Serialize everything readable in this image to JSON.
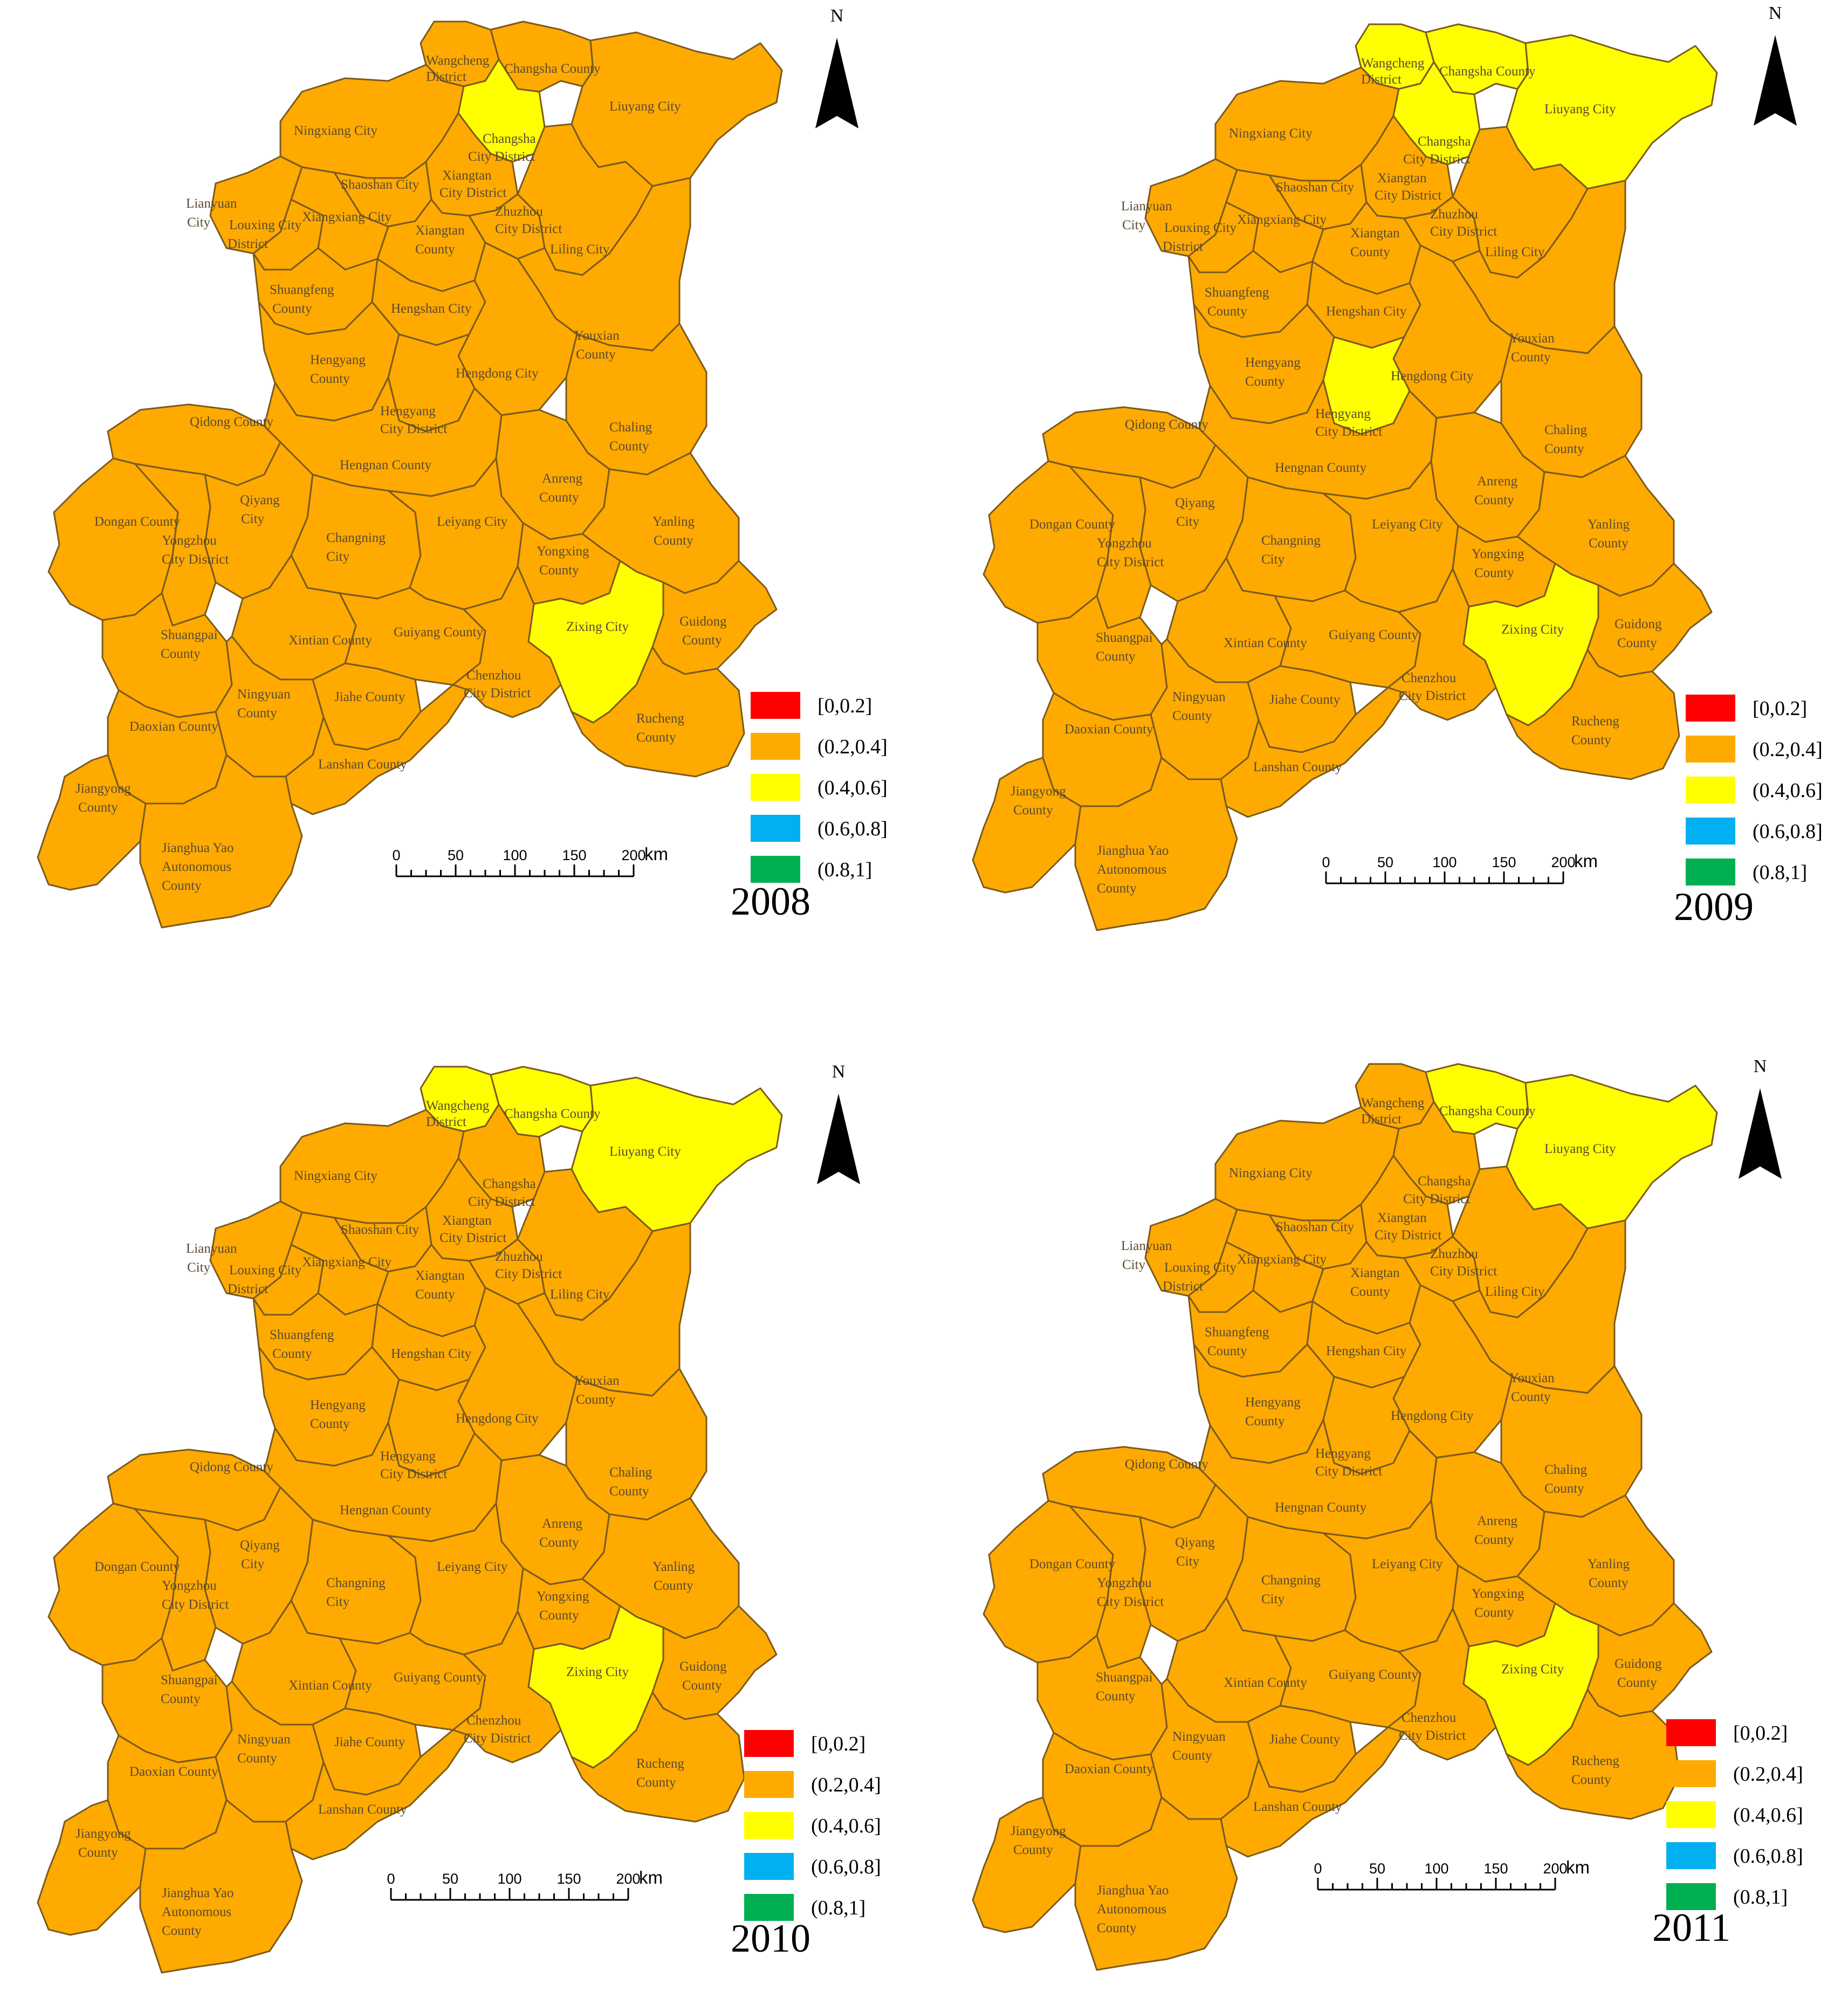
{
  "legend": {
    "classes": [
      {
        "label": "[0,0.2]",
        "color": "#ff0000"
      },
      {
        "label": "(0.2,0.4]",
        "color": "#ffaa00"
      },
      {
        "label": "(0.4,0.6]",
        "color": "#ffff00"
      },
      {
        "label": "(0.6,0.8]",
        "color": "#00b0f0"
      },
      {
        "label": "(0.8,1]",
        "color": "#00b050"
      }
    ]
  },
  "north_arrow": {
    "letter": "N"
  },
  "scale_bar": {
    "ticks": [
      "0",
      "50",
      "100",
      "150",
      "200"
    ],
    "unit": "km"
  },
  "regions": [
    {
      "name": "Wangcheng District",
      "lines": [
        "Wangcheng",
        "District"
      ]
    },
    {
      "name": "Changsha County",
      "lines": [
        "Changsha County"
      ]
    },
    {
      "name": "Liuyang City",
      "lines": [
        "Liuyang City"
      ]
    },
    {
      "name": "Ningxiang City",
      "lines": [
        "Ningxiang City"
      ]
    },
    {
      "name": "Changsha City District",
      "lines": [
        "Changsha",
        "City District"
      ]
    },
    {
      "name": "Shaoshan City",
      "lines": [
        "Shaoshan City"
      ]
    },
    {
      "name": "Xiangtan City District",
      "lines": [
        "Xiangtan",
        "City District"
      ]
    },
    {
      "name": "Lianyuan City",
      "lines": [
        "Lianyuan",
        "City"
      ]
    },
    {
      "name": "Louxing City District",
      "lines": [
        "Louxing City",
        "District"
      ]
    },
    {
      "name": "Xiangxiang City",
      "lines": [
        "Xiangxiang City"
      ]
    },
    {
      "name": "Xiangtan County",
      "lines": [
        "Xiangtan",
        "County"
      ]
    },
    {
      "name": "Zhuzhou City District",
      "lines": [
        "Zhuzhou",
        "City District"
      ]
    },
    {
      "name": "Liling City",
      "lines": [
        "Liling City"
      ]
    },
    {
      "name": "Shuangfeng County",
      "lines": [
        "Shuangfeng",
        "County"
      ]
    },
    {
      "name": "Hengshan City",
      "lines": [
        "Hengshan City"
      ]
    },
    {
      "name": "Youxian County",
      "lines": [
        "Youxian",
        "County"
      ]
    },
    {
      "name": "Hengyang County",
      "lines": [
        "Hengyang",
        "County"
      ]
    },
    {
      "name": "Hengdong City",
      "lines": [
        "Hengdong City"
      ]
    },
    {
      "name": "Qidong County",
      "lines": [
        "Qidong County"
      ]
    },
    {
      "name": "Hengyang City District",
      "lines": [
        "Hengyang",
        "City District"
      ]
    },
    {
      "name": "Chaling County",
      "lines": [
        "Chaling",
        "County"
      ]
    },
    {
      "name": "Hengnan County",
      "lines": [
        "Hengnan County"
      ]
    },
    {
      "name": "Anreng County",
      "lines": [
        "Anreng",
        "County"
      ]
    },
    {
      "name": "Qiyang City",
      "lines": [
        "Qiyang",
        "City"
      ]
    },
    {
      "name": "Dongan County",
      "lines": [
        "Dongan County"
      ]
    },
    {
      "name": "Yongzhou City District",
      "lines": [
        "Yongzhou",
        "City District"
      ]
    },
    {
      "name": "Changning City",
      "lines": [
        "Changning",
        "City"
      ]
    },
    {
      "name": "Leiyang City",
      "lines": [
        "Leiyang City"
      ]
    },
    {
      "name": "Yanling County",
      "lines": [
        "Yanling",
        "County"
      ]
    },
    {
      "name": "Yongxing County",
      "lines": [
        "Yongxing",
        "County"
      ]
    },
    {
      "name": "Zixing City",
      "lines": [
        "Zixing City"
      ]
    },
    {
      "name": "Guidong County",
      "lines": [
        "Guidong",
        "County"
      ]
    },
    {
      "name": "Shuangpai County",
      "lines": [
        "Shuangpai",
        "County"
      ]
    },
    {
      "name": "Xintian County",
      "lines": [
        "Xintian County"
      ]
    },
    {
      "name": "Guiyang County",
      "lines": [
        "Guiyang County"
      ]
    },
    {
      "name": "Chenzhou City District",
      "lines": [
        "Chenzhou",
        "City District"
      ]
    },
    {
      "name": "Ningyuan County",
      "lines": [
        "Ningyuan",
        "County"
      ]
    },
    {
      "name": "Jiahe County",
      "lines": [
        "Jiahe County"
      ]
    },
    {
      "name": "Rucheng County",
      "lines": [
        "Rucheng",
        "County"
      ]
    },
    {
      "name": "Daoxian County",
      "lines": [
        "Daoxian County"
      ]
    },
    {
      "name": "Lanshan County",
      "lines": [
        "Lanshan County"
      ]
    },
    {
      "name": "Jiangyong County",
      "lines": [
        "Jiangyong",
        "County"
      ]
    },
    {
      "name": "Jianghua Yao Autonomous County",
      "lines": [
        "Jianghua Yao",
        "Autonomous",
        "County"
      ]
    }
  ],
  "panels": [
    {
      "year": "2008",
      "class_range": {
        "Changsha City District": "(0.4,0.6]",
        "Zixing City": "(0.4,0.6]",
        "other": "(0.2,0.4]"
      }
    },
    {
      "year": "2009",
      "class_range": {
        "Wangcheng District": "(0.4,0.6]",
        "Changsha County": "(0.4,0.6]",
        "Liuyang City": "(0.4,0.6]",
        "Changsha City District": "(0.4,0.6]",
        "Hengyang City District": "(0.4,0.6]",
        "Zixing City": "(0.4,0.6]",
        "other": "(0.2,0.4]"
      }
    },
    {
      "year": "2010",
      "class_range": {
        "Wangcheng District": "(0.4,0.6]",
        "Changsha County": "(0.4,0.6]",
        "Liuyang City": "(0.4,0.6]",
        "Zixing City": "(0.4,0.6]",
        "other": "(0.2,0.4]"
      }
    },
    {
      "year": "2011",
      "class_range": {
        "Changsha County": "(0.4,0.6]",
        "Liuyang City": "(0.4,0.6]",
        "Zixing City": "(0.4,0.6]",
        "other": "(0.2,0.4]"
      }
    }
  ]
}
